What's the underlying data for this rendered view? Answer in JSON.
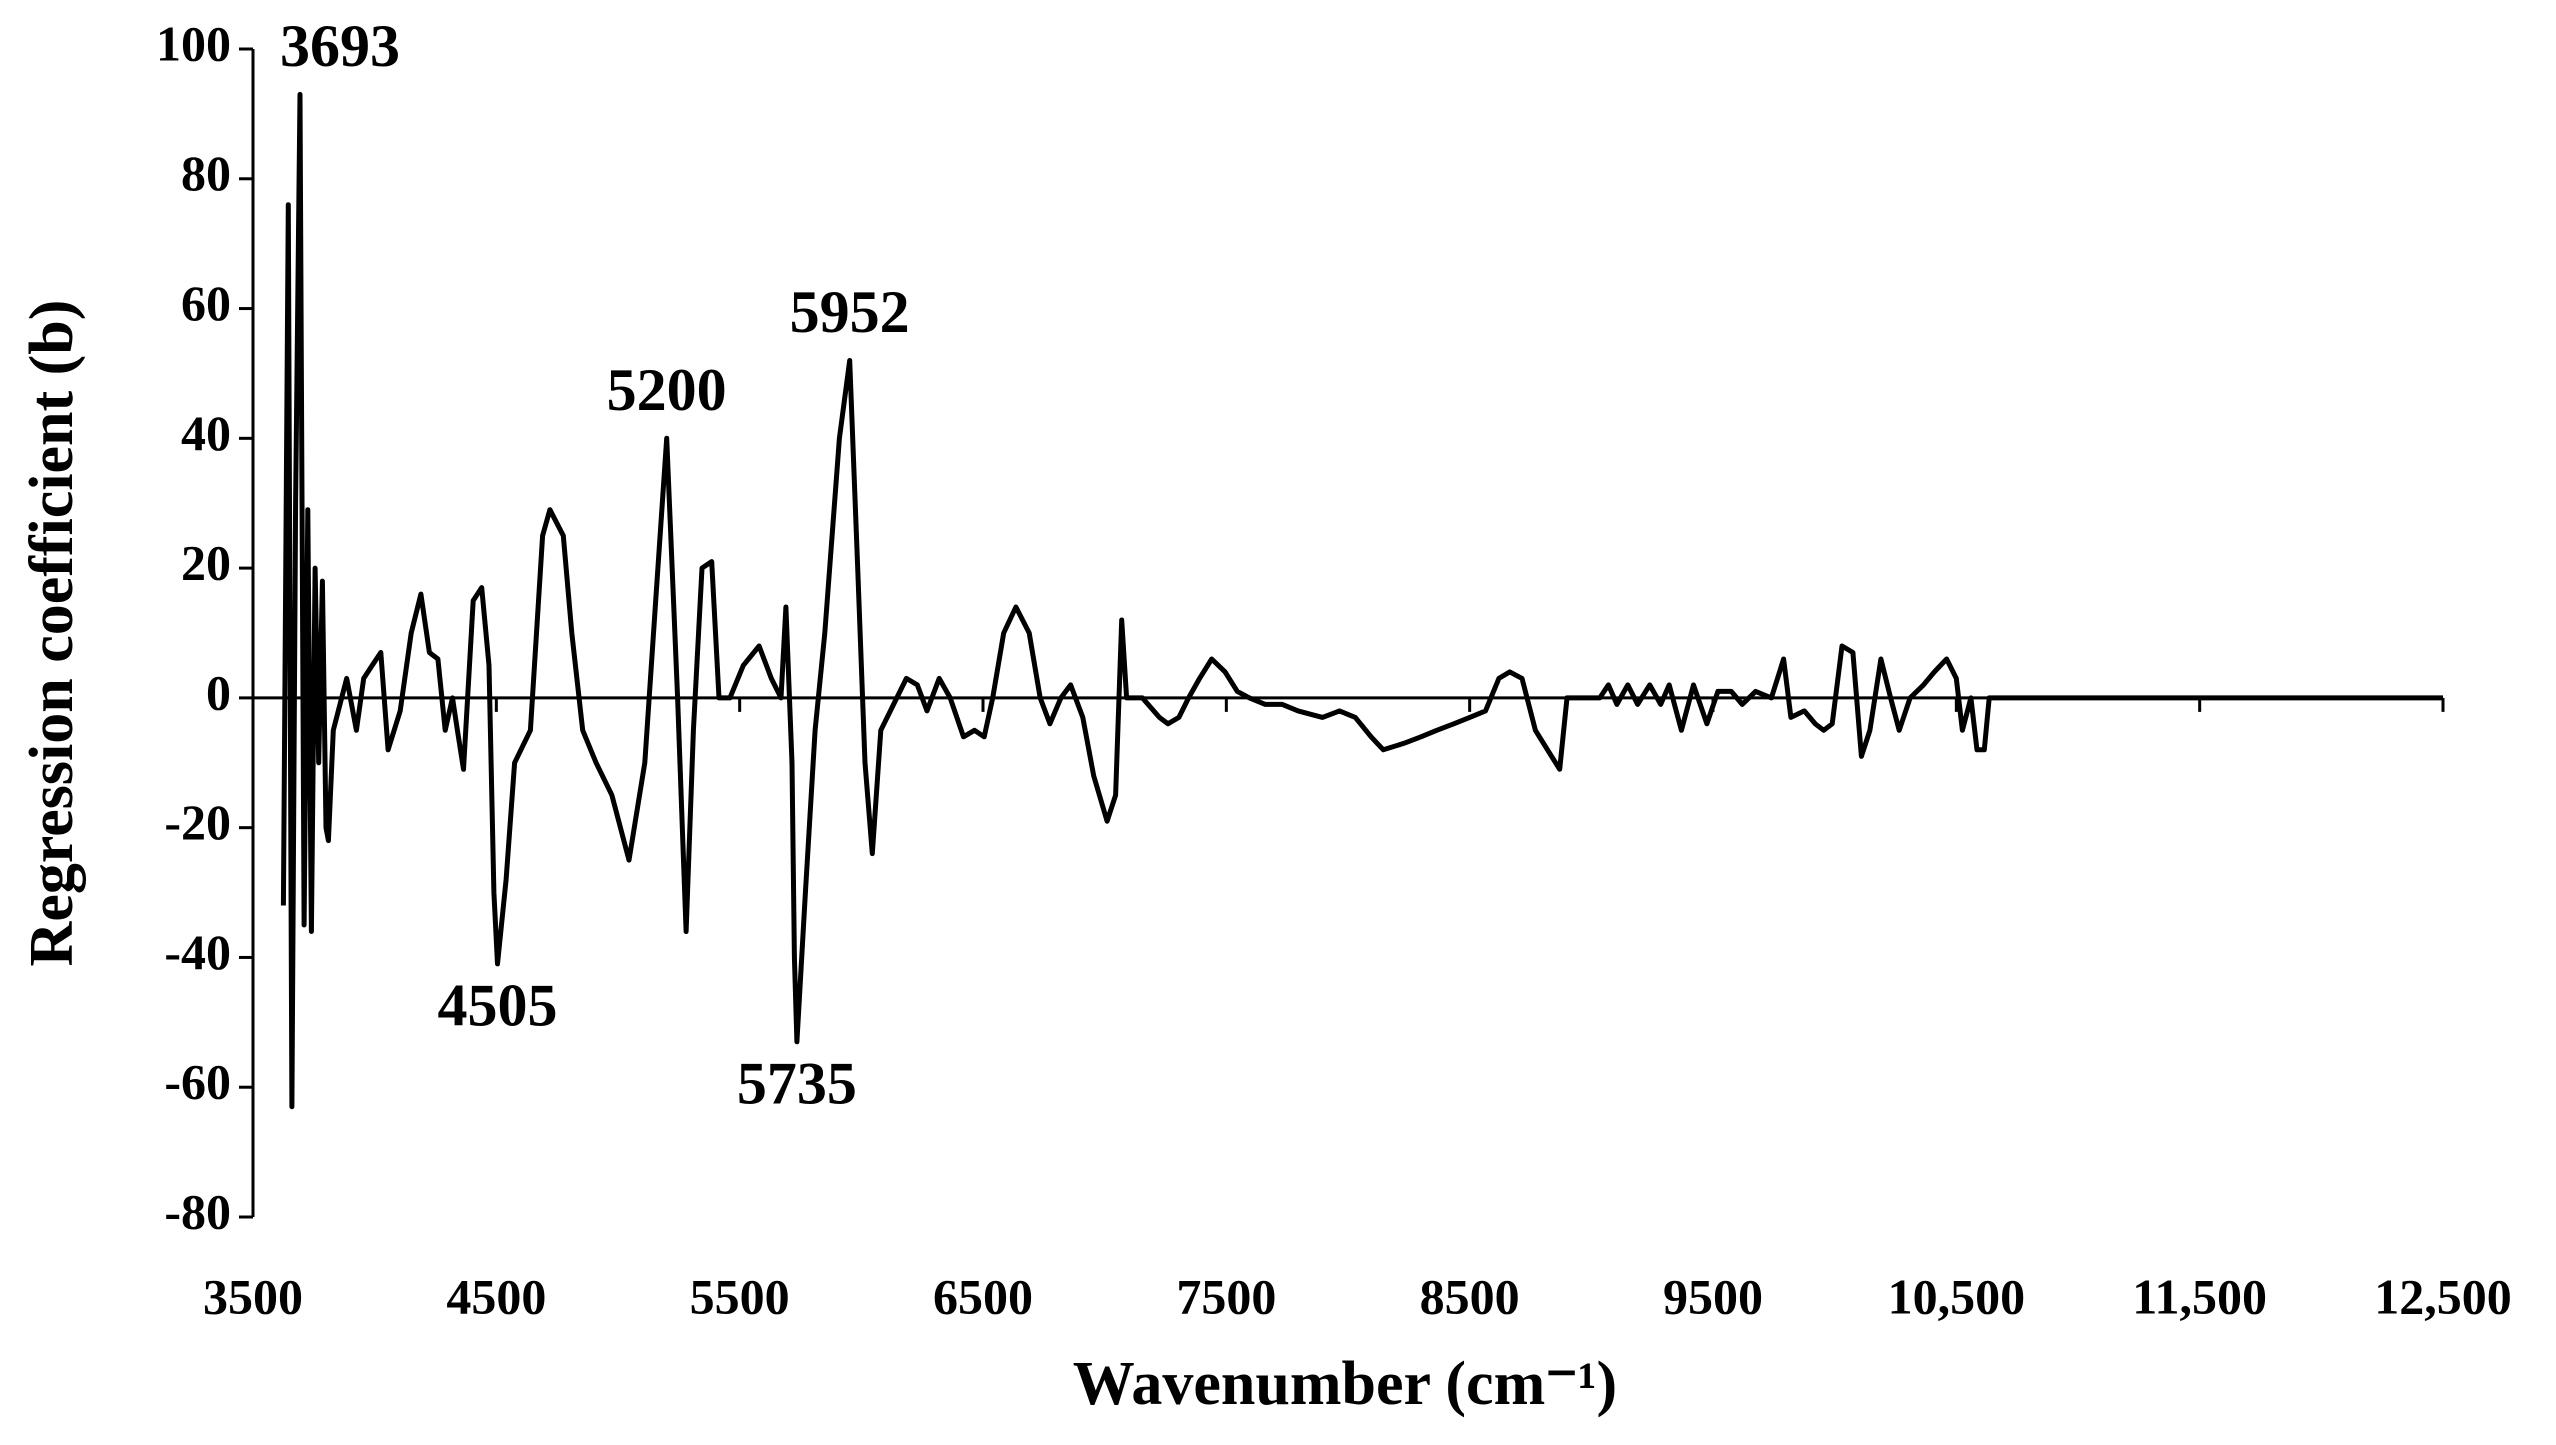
{
  "chart_data": {
    "type": "line",
    "x_label": "Wavenumber (cm⁻¹)",
    "y_label": "Regression coefficient (b)",
    "x": [
      3625,
      3645,
      3660,
      3675,
      3693,
      3710,
      3725,
      3740,
      3755,
      3770,
      3785,
      3800,
      3810,
      3830,
      3885,
      3925,
      3955,
      3990,
      4025,
      4055,
      4105,
      4150,
      4190,
      4225,
      4260,
      4290,
      4320,
      4340,
      4365,
      4405,
      4440,
      4470,
      4490,
      4505,
      4540,
      4575,
      4640,
      4690,
      4720,
      4775,
      4810,
      4855,
      4910,
      4975,
      5045,
      5110,
      5155,
      5200,
      5245,
      5280,
      5310,
      5345,
      5385,
      5415,
      5460,
      5515,
      5580,
      5630,
      5670,
      5690,
      5715,
      5725,
      5735,
      5770,
      5810,
      5850,
      5910,
      5952,
      5985,
      6015,
      6045,
      6080,
      6185,
      6230,
      6270,
      6320,
      6365,
      6420,
      6465,
      6505,
      6540,
      6585,
      6635,
      6690,
      6735,
      6775,
      6820,
      6860,
      6910,
      6955,
      7010,
      7045,
      7070,
      7090,
      7155,
      7225,
      7260,
      7305,
      7345,
      7390,
      7440,
      7495,
      7545,
      7595,
      7660,
      7730,
      7795,
      7895,
      7965,
      8030,
      8095,
      8145,
      8230,
      8300,
      8365,
      8435,
      8500,
      8565,
      8620,
      8665,
      8715,
      8770,
      8820,
      8870,
      8900,
      9035,
      9070,
      9105,
      9150,
      9190,
      9240,
      9285,
      9320,
      9370,
      9420,
      9475,
      9520,
      9575,
      9620,
      9675,
      9740,
      9790,
      9820,
      9875,
      9920,
      9955,
      9990,
      10030,
      10075,
      10110,
      10145,
      10190,
      10230,
      10265,
      10310,
      10365,
      10410,
      10460,
      10500,
      10525,
      10560,
      10585,
      10615,
      10635,
      12500
    ],
    "series": [
      {
        "color": "#000000",
        "values": [
          -32,
          76,
          -63,
          30,
          93,
          -35,
          29,
          -36,
          20,
          -10,
          18,
          -20,
          -22,
          -5,
          3,
          -5,
          3,
          5,
          7,
          -8,
          -2,
          10,
          16,
          7,
          6,
          -5,
          0,
          -5,
          -11,
          15,
          17,
          5,
          -30,
          -41,
          -28,
          -10,
          -5,
          25,
          29,
          25,
          10,
          -5,
          -10,
          -15,
          -25,
          -10,
          15,
          40,
          0,
          -36,
          -5,
          20,
          21,
          0,
          0,
          5,
          8,
          3,
          0,
          14,
          -10,
          -40,
          -53,
          -30,
          -5,
          10,
          40,
          52,
          20,
          -10,
          -24,
          -5,
          3,
          2,
          -2,
          3,
          0,
          -6,
          -5,
          -6,
          0,
          10,
          14,
          10,
          0,
          -4,
          0,
          2,
          -3,
          -12,
          -19,
          -15,
          12,
          0,
          0,
          -3,
          -4,
          -3,
          0,
          3,
          6,
          4,
          1,
          0,
          -1,
          -1,
          -2,
          -3,
          -2,
          -3,
          -6,
          -8,
          -7,
          -6,
          -5,
          -4,
          -3,
          -2,
          3,
          4,
          3,
          -5,
          -8,
          -11,
          0,
          0,
          2,
          -1,
          2,
          -1,
          2,
          -1,
          2,
          -5,
          2,
          -4,
          1,
          1,
          -1,
          1,
          0,
          6,
          -3,
          -2,
          -4,
          -5,
          -4,
          8,
          7,
          -9,
          -5,
          6,
          0,
          -5,
          0,
          2,
          4,
          6,
          3,
          -5,
          0,
          -8,
          -8,
          0,
          0
        ]
      }
    ],
    "annotations": [
      {
        "text": "3693",
        "x": 3693,
        "y": 93
      },
      {
        "text": "5200",
        "x": 5200,
        "y": 40
      },
      {
        "text": "5952",
        "x": 5952,
        "y": 52
      },
      {
        "text": "4505",
        "x": 4505,
        "y": -41
      },
      {
        "text": "5735",
        "x": 5735,
        "y": -53
      }
    ],
    "xlim": [
      3500,
      12500
    ],
    "xticks": [
      3500,
      4500,
      5500,
      6500,
      7500,
      8500,
      9500,
      {
        "value": 10500,
        "label": "10,500"
      },
      {
        "value": 11500,
        "label": "11,500"
      },
      {
        "value": 12500,
        "label": "12,500"
      }
    ],
    "ylim": [
      -80,
      100
    ],
    "yticks": [
      -80,
      -60,
      -40,
      -20,
      0,
      20,
      40,
      60,
      80,
      100
    ]
  }
}
